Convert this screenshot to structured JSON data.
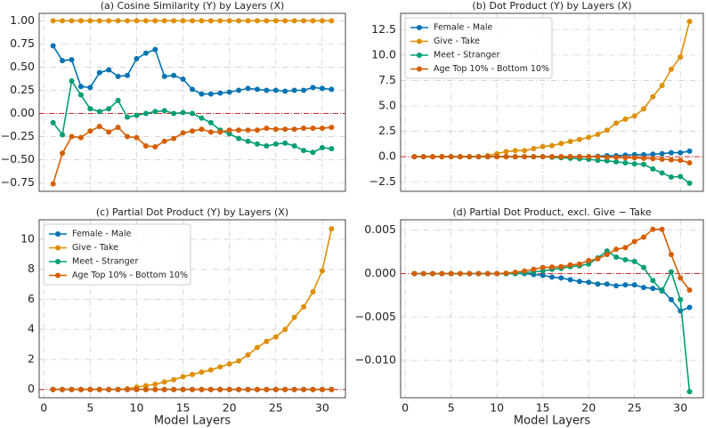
{
  "chart_data": [
    {
      "type": "line",
      "title": "(a) Cosine Similarity (Y) by Layers (X)",
      "x": [
        1,
        2,
        3,
        4,
        5,
        6,
        7,
        8,
        9,
        10,
        11,
        12,
        13,
        14,
        15,
        16,
        17,
        18,
        19,
        20,
        21,
        22,
        23,
        24,
        25,
        26,
        27,
        28,
        29,
        30,
        31
      ],
      "xlim": [
        -0.5,
        32.5
      ],
      "xticks": [
        0,
        5,
        10,
        15,
        20,
        25,
        30
      ],
      "xtick_labels": false,
      "ylim": [
        -0.84,
        1.08
      ],
      "yticks": [
        {
          "value": -0.75,
          "label": "−0.75"
        },
        {
          "value": -0.5,
          "label": "−0.50"
        },
        {
          "value": -0.25,
          "label": "−0.25"
        },
        {
          "value": 0,
          "label": "0.00"
        },
        {
          "value": 0.25,
          "label": "0.25"
        },
        {
          "value": 0.5,
          "label": "0.50"
        },
        {
          "value": 0.75,
          "label": "0.75"
        },
        {
          "value": 1,
          "label": "1.00"
        }
      ],
      "grid": true,
      "reference_line": {
        "y": 0,
        "color": "#d62728"
      },
      "series": [
        {
          "color": "#0173b2",
          "values": [
            0.73,
            0.57,
            0.58,
            0.29,
            0.28,
            0.44,
            0.47,
            0.4,
            0.41,
            0.59,
            0.65,
            0.69,
            0.4,
            0.41,
            0.37,
            0.26,
            0.21,
            0.21,
            0.22,
            0.23,
            0.25,
            0.27,
            0.26,
            0.25,
            0.25,
            0.24,
            0.25,
            0.25,
            0.28,
            0.27,
            0.26
          ]
        },
        {
          "color": "#de8f05",
          "values": [
            1,
            1,
            1,
            1,
            1,
            1,
            1,
            1,
            1,
            1,
            1,
            1,
            1,
            1,
            1,
            1,
            1,
            1,
            1,
            1,
            1,
            1,
            1,
            1,
            1,
            1,
            1,
            1,
            1,
            1,
            1
          ]
        },
        {
          "color": "#029e73",
          "values": [
            -0.1,
            -0.23,
            0.35,
            0.2,
            0.05,
            0.02,
            0.05,
            0.14,
            -0.04,
            -0.02,
            0.0,
            0.02,
            0.03,
            0.0,
            0.01,
            0.0,
            -0.05,
            -0.1,
            -0.18,
            -0.22,
            -0.27,
            -0.3,
            -0.33,
            -0.35,
            -0.33,
            -0.32,
            -0.35,
            -0.4,
            -0.42,
            -0.37,
            -0.38
          ]
        },
        {
          "color": "#d55e00",
          "values": [
            -0.76,
            -0.43,
            -0.25,
            -0.26,
            -0.19,
            -0.14,
            -0.2,
            -0.15,
            -0.25,
            -0.26,
            -0.35,
            -0.36,
            -0.3,
            -0.27,
            -0.21,
            -0.19,
            -0.17,
            -0.2,
            -0.2,
            -0.18,
            -0.18,
            -0.18,
            -0.18,
            -0.16,
            -0.17,
            -0.17,
            -0.17,
            -0.16,
            -0.16,
            -0.16,
            -0.15
          ]
        }
      ]
    },
    {
      "type": "line",
      "title": "(b) Dot Product (Y) by Layers (X)",
      "x": [
        1,
        2,
        3,
        4,
        5,
        6,
        7,
        8,
        9,
        10,
        11,
        12,
        13,
        14,
        15,
        16,
        17,
        18,
        19,
        20,
        21,
        22,
        23,
        24,
        25,
        26,
        27,
        28,
        29,
        30,
        31
      ],
      "xlim": [
        -0.5,
        32.5
      ],
      "xticks": [
        0,
        5,
        10,
        15,
        20,
        25,
        30
      ],
      "xtick_labels": false,
      "ylim": [
        -3.4,
        14.1
      ],
      "yticks": [
        {
          "value": -2.5,
          "label": "−2.5"
        },
        {
          "value": 0,
          "label": "0.0"
        },
        {
          "value": 2.5,
          "label": "2.5"
        },
        {
          "value": 5,
          "label": "5.0"
        },
        {
          "value": 7.5,
          "label": "7.5"
        },
        {
          "value": 10,
          "label": "10.0"
        },
        {
          "value": 12.5,
          "label": "12.5"
        }
      ],
      "grid": true,
      "reference_line": {
        "y": 0,
        "color": "#d62728"
      },
      "legend": "upper left",
      "series": [
        {
          "name": "Female - Male",
          "color": "#0173b2",
          "values": [
            0,
            0,
            0,
            0,
            0,
            0,
            0,
            0,
            0,
            0,
            0,
            0,
            0,
            0,
            0,
            0,
            0,
            0,
            0,
            0,
            0.05,
            0.1,
            0.1,
            0.15,
            0.2,
            0.2,
            0.25,
            0.3,
            0.4,
            0.4,
            0.55
          ]
        },
        {
          "name": "Give - Take",
          "color": "#de8f05",
          "values": [
            0,
            0,
            0,
            0,
            0,
            0,
            0,
            0,
            0.1,
            0.3,
            0.5,
            0.6,
            0.6,
            0.8,
            1.0,
            1.1,
            1.3,
            1.5,
            1.7,
            1.9,
            2.2,
            2.6,
            3.3,
            3.7,
            4.0,
            4.7,
            5.9,
            7.0,
            8.6,
            9.8,
            13.3
          ]
        },
        {
          "name": "Meet - Stranger",
          "color": "#029e73",
          "values": [
            0,
            0,
            0,
            0,
            0,
            0,
            0,
            0,
            0,
            0,
            0,
            0,
            0,
            0,
            0,
            -0.05,
            -0.1,
            -0.15,
            -0.2,
            -0.25,
            -0.35,
            -0.4,
            -0.5,
            -0.6,
            -0.7,
            -0.75,
            -1.2,
            -1.6,
            -2.0,
            -1.95,
            -2.6
          ]
        },
        {
          "name": "Age Top 10% - Bottom 10%",
          "color": "#d55e00",
          "values": [
            0,
            0,
            0,
            0,
            0,
            0,
            0,
            0,
            0,
            0,
            0,
            0,
            0,
            0,
            0,
            0,
            0,
            0,
            0,
            0,
            0,
            -0.05,
            -0.05,
            -0.1,
            -0.1,
            -0.15,
            -0.2,
            -0.25,
            -0.3,
            -0.35,
            -0.6
          ]
        }
      ]
    },
    {
      "type": "line",
      "title": "(c) Partial Dot Product (Y) by Layers (X)",
      "xlabel": "Model Layers",
      "x": [
        1,
        2,
        3,
        4,
        5,
        6,
        7,
        8,
        9,
        10,
        11,
        12,
        13,
        14,
        15,
        16,
        17,
        18,
        19,
        20,
        21,
        22,
        23,
        24,
        25,
        26,
        27,
        28,
        29,
        30,
        31
      ],
      "xlim": [
        -0.5,
        32.5
      ],
      "xticks": [
        0,
        5,
        10,
        15,
        20,
        25,
        30
      ],
      "xtick_labels": true,
      "ylim": [
        -0.55,
        11.3
      ],
      "yticks": [
        0,
        2,
        4,
        6,
        8,
        10
      ],
      "grid": true,
      "reference_line": {
        "y": 0,
        "color": "#d62728"
      },
      "legend": "upper left",
      "series": [
        {
          "name": "Female - Male",
          "color": "#0173b2",
          "values": [
            0,
            0,
            0,
            0,
            0,
            0,
            0,
            0,
            0,
            0,
            0,
            0,
            0,
            0,
            0,
            0,
            0,
            0,
            0,
            0,
            0,
            0,
            0,
            0,
            0,
            0,
            0,
            0,
            0,
            0,
            0
          ]
        },
        {
          "name": "Give - Take",
          "color": "#de8f05",
          "values": [
            0,
            0,
            0,
            0,
            0,
            0,
            0,
            0,
            0.05,
            0.15,
            0.25,
            0.35,
            0.5,
            0.65,
            0.85,
            1.0,
            1.15,
            1.3,
            1.5,
            1.7,
            1.9,
            2.3,
            2.8,
            3.2,
            3.5,
            4.0,
            4.8,
            5.5,
            6.5,
            7.9,
            10.7
          ]
        },
        {
          "name": "Meet - Stranger",
          "color": "#029e73",
          "values": [
            0,
            0,
            0,
            0,
            0,
            0,
            0,
            0,
            0,
            0,
            0,
            0,
            0,
            0,
            0,
            0,
            0,
            0,
            0,
            0,
            0,
            0,
            0,
            0,
            0,
            0,
            0,
            0,
            0,
            0,
            0
          ]
        },
        {
          "name": "Age Top 10% - Bottom 10%",
          "color": "#d55e00",
          "values": [
            0,
            0,
            0,
            0,
            0,
            0,
            0,
            0,
            0,
            0,
            0,
            0,
            0,
            0,
            0,
            0,
            0,
            0,
            0,
            0,
            0,
            0,
            0,
            0,
            0,
            0,
            0,
            0,
            0,
            0,
            0
          ]
        }
      ]
    },
    {
      "type": "line",
      "title": "(d) Partial Dot Product, excl. Give − Take",
      "xlabel": "Model Layers",
      "x": [
        1,
        2,
        3,
        4,
        5,
        6,
        7,
        8,
        9,
        10,
        11,
        12,
        13,
        14,
        15,
        16,
        17,
        18,
        19,
        20,
        21,
        22,
        23,
        24,
        25,
        26,
        27,
        28,
        29,
        30,
        31
      ],
      "xlim": [
        -0.5,
        32.5
      ],
      "xticks": [
        0,
        5,
        10,
        15,
        20,
        25,
        30
      ],
      "xtick_labels": true,
      "ylim": [
        -0.0143,
        0.0062
      ],
      "yticks": [
        {
          "value": -0.01,
          "label": "−0.010"
        },
        {
          "value": -0.005,
          "label": "−0.005"
        },
        {
          "value": 0,
          "label": "0.000"
        },
        {
          "value": 0.005,
          "label": "0.005"
        }
      ],
      "grid": true,
      "reference_line": {
        "y": 0,
        "color": "#d62728"
      },
      "series": [
        {
          "color": "#0173b2",
          "values": [
            0,
            0,
            0,
            0,
            0,
            0,
            0,
            0,
            0,
            0,
            0,
            0,
            0,
            -0.0001,
            -0.0002,
            -0.0004,
            -0.0005,
            -0.0007,
            -0.0009,
            -0.001,
            -0.0012,
            -0.0012,
            -0.0014,
            -0.0013,
            -0.0013,
            -0.0016,
            -0.0017,
            -0.0019,
            -0.003,
            -0.0043,
            -0.0039
          ]
        },
        {
          "color": "#029e73",
          "values": [
            0,
            0,
            0,
            0,
            0,
            0,
            0,
            0,
            0,
            0,
            0,
            0,
            0.0001,
            0.0002,
            0.0003,
            0.0005,
            0.0006,
            0.0008,
            0.0009,
            0.0011,
            0.0018,
            0.0026,
            0.0019,
            0.0016,
            0.0014,
            0.0007,
            -0.0008,
            -0.002,
            0.0002,
            -0.003,
            -0.0136
          ]
        },
        {
          "color": "#d55e00",
          "values": [
            0,
            0,
            0,
            0,
            0,
            0,
            0,
            0,
            0,
            0,
            5e-05,
            0.00015,
            0.0003,
            0.0005,
            0.0007,
            0.00075,
            0.0008,
            0.001,
            0.0011,
            0.0015,
            0.0017,
            0.0022,
            0.0028,
            0.003,
            0.0037,
            0.0042,
            0.0051,
            0.0051,
            0.0022,
            -0.0005,
            -0.0019
          ]
        }
      ]
    }
  ]
}
